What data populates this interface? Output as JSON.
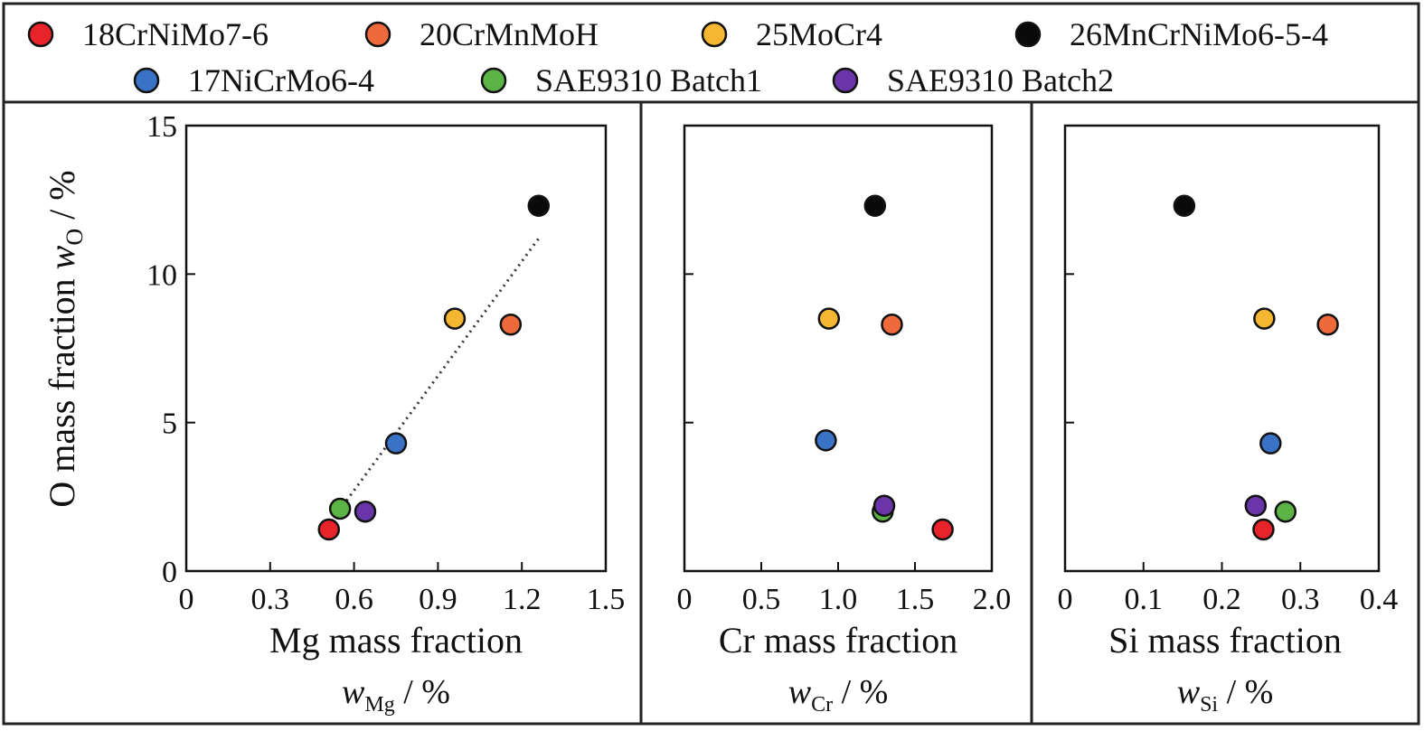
{
  "legend": [
    {
      "name": "18CrNiMo7-6",
      "color": "#e8232a"
    },
    {
      "name": "20CrMnMoH",
      "color": "#ef6a3a"
    },
    {
      "name": "25MoCr4",
      "color": "#f5b731"
    },
    {
      "name": "26MnCrNiMo6-5-4",
      "color": "#0a0a0a"
    },
    {
      "name": "17NiCrMo6-4",
      "color": "#3a72c6"
    },
    {
      "name": "SAE9310 Batch1",
      "color": "#5db446"
    },
    {
      "name": "SAE9310 Batch2",
      "color": "#6a35a8"
    }
  ],
  "y_axis_label": {
    "main": "O mass fraction ",
    "var": "w",
    "sub": "O",
    "unit": " / %"
  },
  "chart_data": [
    {
      "type": "scatter",
      "xlabel": "Mg mass fraction",
      "xlabel_var": "w",
      "xlabel_sub": "Mg",
      "xlabel_unit": " / %",
      "xlim": [
        0,
        1.5
      ],
      "xticks": [
        0,
        0.3,
        0.6,
        0.9,
        1.2,
        1.5
      ],
      "xtick_labels": [
        "0",
        "0.3",
        "0.6",
        "0.9",
        "1.2",
        "1.5"
      ],
      "ylim": [
        0,
        15
      ],
      "yticks": [
        0,
        5,
        10,
        15
      ],
      "ytick_labels": [
        "0",
        "5",
        "10",
        "15"
      ],
      "show_y_labels": true,
      "trendline": {
        "x": [
          0.56,
          1.26
        ],
        "y": [
          2.2,
          11.2
        ]
      },
      "points": [
        {
          "series": "18CrNiMo7-6",
          "x": 0.51,
          "y": 1.4
        },
        {
          "series": "20CrMnMoH",
          "x": 1.16,
          "y": 8.3
        },
        {
          "series": "25MoCr4",
          "x": 0.96,
          "y": 8.5
        },
        {
          "series": "26MnCrNiMo6-5-4",
          "x": 1.26,
          "y": 12.3
        },
        {
          "series": "17NiCrMo6-4",
          "x": 0.75,
          "y": 4.3
        },
        {
          "series": "SAE9310 Batch1",
          "x": 0.55,
          "y": 2.1
        },
        {
          "series": "SAE9310 Batch2",
          "x": 0.64,
          "y": 2.0
        }
      ]
    },
    {
      "type": "scatter",
      "xlabel": "Cr mass fraction",
      "xlabel_var": "w",
      "xlabel_sub": "Cr",
      "xlabel_unit": " / %",
      "xlim": [
        0,
        2.0
      ],
      "xticks": [
        0,
        0.5,
        1.0,
        1.5,
        2.0
      ],
      "xtick_labels": [
        "0",
        "0.5",
        "1.0",
        "1.5",
        "2.0"
      ],
      "ylim": [
        0,
        15
      ],
      "yticks": [
        0,
        5,
        10,
        15
      ],
      "ytick_labels": [],
      "show_y_labels": false,
      "points": [
        {
          "series": "18CrNiMo7-6",
          "x": 1.68,
          "y": 1.4
        },
        {
          "series": "20CrMnMoH",
          "x": 1.35,
          "y": 8.3
        },
        {
          "series": "25MoCr4",
          "x": 0.94,
          "y": 8.5
        },
        {
          "series": "26MnCrNiMo6-5-4",
          "x": 1.24,
          "y": 12.3
        },
        {
          "series": "17NiCrMo6-4",
          "x": 0.92,
          "y": 4.4
        },
        {
          "series": "SAE9310 Batch1",
          "x": 1.29,
          "y": 2.0
        },
        {
          "series": "SAE9310 Batch2",
          "x": 1.3,
          "y": 2.2
        }
      ]
    },
    {
      "type": "scatter",
      "xlabel": "Si mass fraction",
      "xlabel_var": "w",
      "xlabel_sub": "Si",
      "xlabel_unit": " / %",
      "xlim": [
        0,
        0.4
      ],
      "xticks": [
        0,
        0.1,
        0.2,
        0.3,
        0.4
      ],
      "xtick_labels": [
        "0",
        "0.1",
        "0.2",
        "0.3",
        "0.4"
      ],
      "ylim": [
        0,
        15
      ],
      "yticks": [
        0,
        5,
        10,
        15
      ],
      "ytick_labels": [],
      "show_y_labels": false,
      "points": [
        {
          "series": "18CrNiMo7-6",
          "x": 0.253,
          "y": 1.4
        },
        {
          "series": "20CrMnMoH",
          "x": 0.335,
          "y": 8.3
        },
        {
          "series": "25MoCr4",
          "x": 0.254,
          "y": 8.5
        },
        {
          "series": "26MnCrNiMo6-5-4",
          "x": 0.152,
          "y": 12.3
        },
        {
          "series": "17NiCrMo6-4",
          "x": 0.262,
          "y": 4.3
        },
        {
          "series": "SAE9310 Batch1",
          "x": 0.281,
          "y": 2.0
        },
        {
          "series": "SAE9310 Batch2",
          "x": 0.243,
          "y": 2.2
        }
      ]
    }
  ]
}
